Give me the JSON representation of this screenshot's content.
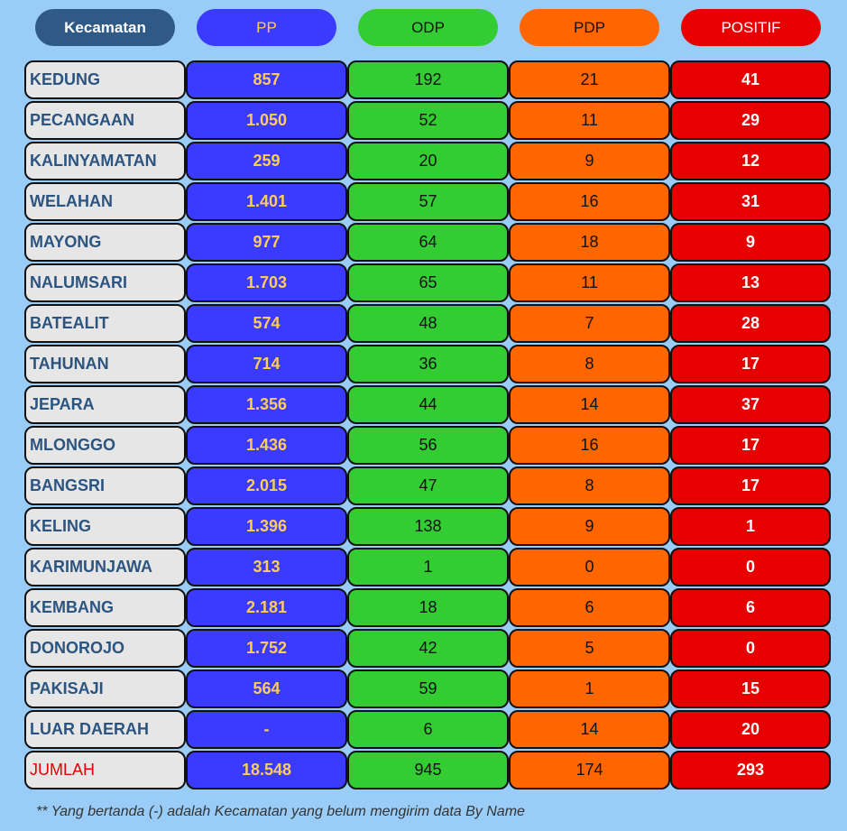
{
  "headers": {
    "kecamatan": "Kecamatan",
    "pp": "PP",
    "odp": "ODP",
    "pdp": "PDP",
    "positif": "POSITIF"
  },
  "rows": [
    {
      "name": "KEDUNG",
      "pp": "857",
      "odp": "192",
      "pdp": "21",
      "positif": "41"
    },
    {
      "name": "PECANGAAN",
      "pp": "1.050",
      "odp": "52",
      "pdp": "11",
      "positif": "29"
    },
    {
      "name": "KALINYAMATAN",
      "pp": "259",
      "odp": "20",
      "pdp": "9",
      "positif": "12"
    },
    {
      "name": "WELAHAN",
      "pp": "1.401",
      "odp": "57",
      "pdp": "16",
      "positif": "31"
    },
    {
      "name": "MAYONG",
      "pp": "977",
      "odp": "64",
      "pdp": "18",
      "positif": "9"
    },
    {
      "name": "NALUMSARI",
      "pp": "1.703",
      "odp": "65",
      "pdp": "11",
      "positif": "13"
    },
    {
      "name": "BATEALIT",
      "pp": "574",
      "odp": "48",
      "pdp": "7",
      "positif": "28"
    },
    {
      "name": "TAHUNAN",
      "pp": "714",
      "odp": "36",
      "pdp": "8",
      "positif": "17"
    },
    {
      "name": "JEPARA",
      "pp": "1.356",
      "odp": "44",
      "pdp": "14",
      "positif": "37"
    },
    {
      "name": "MLONGGO",
      "pp": "1.436",
      "odp": "56",
      "pdp": "16",
      "positif": "17"
    },
    {
      "name": "BANGSRI",
      "pp": "2.015",
      "odp": "47",
      "pdp": "8",
      "positif": "17"
    },
    {
      "name": "KELING",
      "pp": "1.396",
      "odp": "138",
      "pdp": "9",
      "positif": "1"
    },
    {
      "name": "KARIMUNJAWA",
      "pp": "313",
      "odp": "1",
      "pdp": "0",
      "positif": "0"
    },
    {
      "name": "KEMBANG",
      "pp": "2.181",
      "odp": "18",
      "pdp": "6",
      "positif": "6"
    },
    {
      "name": "DONOROJO",
      "pp": "1.752",
      "odp": "42",
      "pdp": "5",
      "positif": "0"
    },
    {
      "name": "PAKISAJI",
      "pp": "564",
      "odp": "59",
      "pdp": "1",
      "positif": "15"
    },
    {
      "name": "LUAR DAERAH",
      "pp": "-",
      "odp": "6",
      "pdp": "14",
      "positif": "20"
    }
  ],
  "total": {
    "name": "JUMLAH",
    "pp": "18.548",
    "odp": "945",
    "pdp": "174",
    "positif": "293"
  },
  "footnote": "** Yang bertanda (-) adalah Kecamatan yang belum mengirim data By Name",
  "colors": {
    "background": "#99ccf7",
    "kecamatan": "#2f5a86",
    "pp": "#3b3bff",
    "odp": "#33cc33",
    "pdp": "#ff6600",
    "positif": "#e60000",
    "total_label": "#e60000"
  }
}
